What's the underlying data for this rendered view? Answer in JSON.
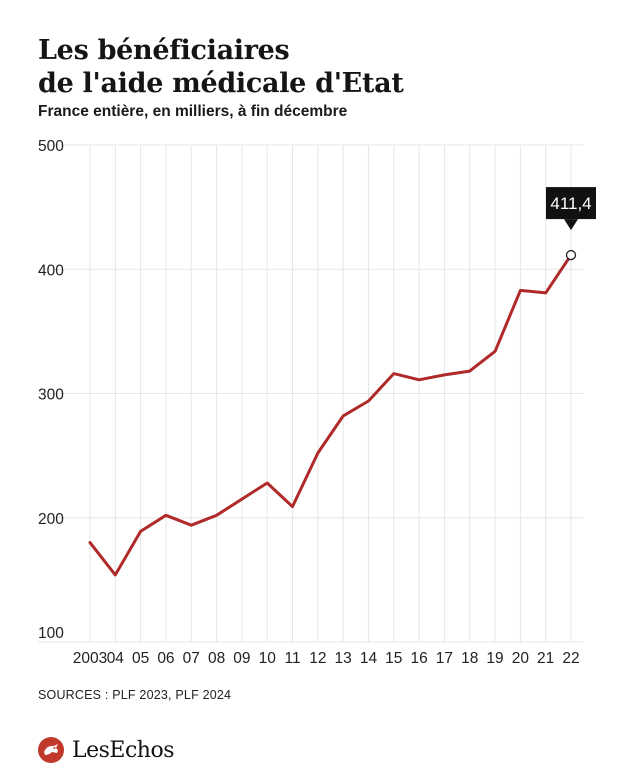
{
  "header": {
    "title_line1": "Les bénéficiaires",
    "title_line2": "de l'aide médicale d'Etat",
    "subtitle": "France entière, en milliers, à fin décembre"
  },
  "chart_data": {
    "type": "line",
    "title": "Les bénéficiaires de l'aide médicale d'Etat",
    "subtitle": "France entière, en milliers, à fin décembre",
    "xlabel": "",
    "ylabel": "",
    "x_tick_labels": [
      "2003",
      "04",
      "05",
      "06",
      "07",
      "08",
      "09",
      "10",
      "11",
      "12",
      "13",
      "14",
      "15",
      "16",
      "17",
      "18",
      "19",
      "20",
      "21",
      "22"
    ],
    "x": [
      2003,
      2004,
      2005,
      2006,
      2007,
      2008,
      2009,
      2010,
      2011,
      2012,
      2013,
      2014,
      2015,
      2016,
      2017,
      2018,
      2019,
      2020,
      2021,
      2022
    ],
    "series": [
      {
        "values": [
          180,
          154,
          189,
          202,
          194,
          202,
          215,
          228,
          209,
          252,
          282,
          294,
          316,
          311,
          315,
          318,
          334,
          383,
          381,
          411.4
        ],
        "color": "#b02a2a"
      }
    ],
    "y_ticks": [
      100,
      200,
      300,
      400,
      500
    ],
    "y_tick_labels": [
      "100",
      "200",
      "300",
      "400",
      "500"
    ],
    "ylim": [
      100,
      500
    ],
    "grid": true,
    "legend": "none",
    "annotation": {
      "label": "411,4",
      "year": 2022,
      "value": 411.4
    }
  },
  "footer": {
    "sources": "SOURCES : PLF 2023, PLF 2024",
    "brand": "LesEchos"
  },
  "colors": {
    "line": "#b02a2a",
    "grid": "#e6e6e6",
    "callout_bg": "#111111",
    "logo_red": "#c0392b"
  },
  "icons": {
    "logo_mark": "les-echos-logo-icon"
  }
}
